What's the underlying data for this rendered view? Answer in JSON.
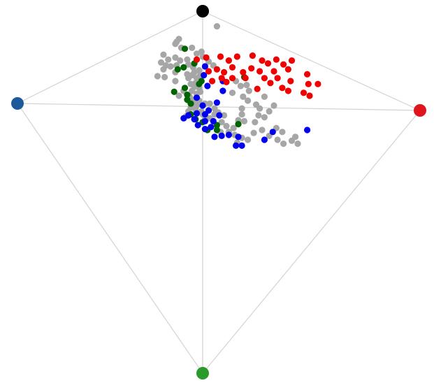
{
  "chart_data": {
    "type": "scatter",
    "description_free": true,
    "axes_shown": false,
    "grid": false,
    "anchors": [
      {
        "id": "top",
        "color": "#000000"
      },
      {
        "id": "left",
        "color": "#1c5a9c"
      },
      {
        "id": "right",
        "color": "#e0141c"
      },
      {
        "id": "bottom",
        "color": "#2a9a2a"
      }
    ],
    "edges": [
      [
        "top",
        "left"
      ],
      [
        "top",
        "right"
      ],
      [
        "left",
        "bottom"
      ],
      [
        "right",
        "bottom"
      ],
      [
        "top",
        "bottom"
      ],
      [
        "left",
        "right"
      ]
    ],
    "colors": {
      "gray": "#a6a6a6",
      "red": "#f00000",
      "blue": "#0000ee",
      "green": "#006400",
      "edge": "#d3d3d3"
    },
    "series": [
      {
        "color_key": "red",
        "points": [
          [
            -0.05,
            -0.52
          ],
          [
            0.03,
            -0.54
          ],
          [
            0.15,
            -0.55
          ],
          [
            0.22,
            -0.51
          ],
          [
            0.29,
            -0.55
          ],
          [
            0.42,
            -0.56
          ],
          [
            0.5,
            -0.51
          ],
          [
            0.05,
            -0.4
          ],
          [
            0.12,
            -0.42
          ],
          [
            0.18,
            -0.39
          ],
          [
            0.25,
            -0.44
          ],
          [
            0.34,
            -0.39
          ],
          [
            0.41,
            -0.43
          ],
          [
            0.48,
            -0.4
          ],
          [
            0.55,
            -0.48
          ],
          [
            0.62,
            -0.52
          ],
          [
            0.68,
            -0.47
          ],
          [
            0.75,
            -0.51
          ],
          [
            0.72,
            -0.42
          ],
          [
            0.6,
            -0.4
          ],
          [
            0.88,
            -0.37
          ],
          [
            0.63,
            -0.33
          ],
          [
            0.74,
            -0.3
          ],
          [
            0.89,
            -0.27
          ],
          [
            0.97,
            -0.27
          ],
          [
            0.16,
            -0.33
          ],
          [
            0.25,
            -0.33
          ],
          [
            0.36,
            -0.33
          ],
          [
            0.52,
            -0.33
          ],
          [
            0.08,
            -0.3
          ],
          [
            0.57,
            -0.28
          ],
          [
            0.67,
            -0.23
          ],
          [
            0.72,
            -0.2
          ],
          [
            0.85,
            -0.18
          ],
          [
            0.9,
            -0.15
          ],
          [
            0.46,
            -0.22
          ],
          [
            0.2,
            -0.29
          ]
        ]
      },
      {
        "color_key": "blue",
        "points": [
          [
            0.02,
            -0.45
          ],
          [
            0.01,
            -0.36
          ],
          [
            0.17,
            -0.3
          ],
          [
            0.17,
            -0.2
          ],
          [
            0.04,
            -0.25
          ],
          [
            -0.05,
            -0.13
          ],
          [
            0.0,
            -0.05
          ],
          [
            0.12,
            -0.08
          ],
          [
            0.05,
            0.0
          ],
          [
            0.02,
            0.04
          ],
          [
            -0.05,
            0.03
          ],
          [
            -0.12,
            0.05
          ],
          [
            -0.07,
            0.09
          ],
          [
            0.09,
            0.11
          ],
          [
            0.14,
            0.05
          ],
          [
            0.07,
            0.17
          ],
          [
            0.02,
            0.19
          ],
          [
            -0.04,
            0.15
          ],
          [
            0.1,
            0.27
          ],
          [
            0.16,
            0.26
          ],
          [
            0.3,
            0.27
          ],
          [
            0.22,
            0.25
          ],
          [
            0.28,
            0.36
          ],
          [
            0.33,
            0.36
          ],
          [
            0.52,
            0.3
          ],
          [
            0.59,
            0.22
          ],
          [
            0.88,
            0.2
          ],
          [
            -0.16,
            0.08
          ],
          [
            0.02,
            0.11
          ]
        ]
      },
      {
        "color_key": "green",
        "points": [
          [
            -0.15,
            -0.63
          ],
          [
            -0.07,
            -0.48
          ],
          [
            -0.16,
            -0.44
          ],
          [
            -0.21,
            -0.42
          ],
          [
            -0.01,
            -0.3
          ],
          [
            -0.03,
            -0.27
          ],
          [
            -0.15,
            -0.23
          ],
          [
            -0.24,
            -0.19
          ],
          [
            -0.13,
            -0.16
          ],
          [
            -0.13,
            -0.11
          ],
          [
            -0.1,
            -0.07
          ],
          [
            -0.1,
            0.04
          ],
          [
            -0.06,
            0.09
          ],
          [
            0.0,
            0.12
          ],
          [
            0.12,
            0.15
          ],
          [
            0.12,
            0.2
          ],
          [
            0.3,
            0.14
          ],
          [
            0.35,
            -0.34
          ],
          [
            0.04,
            0.2
          ]
        ]
      },
      {
        "color_key": "gray",
        "points": [
          [
            0.12,
            -0.86
          ],
          [
            -0.22,
            -0.7
          ],
          [
            -0.2,
            -0.73
          ],
          [
            -0.23,
            -0.68
          ],
          [
            -0.18,
            -0.64
          ],
          [
            -0.09,
            -0.64
          ],
          [
            -0.01,
            -0.6
          ],
          [
            -0.05,
            -0.58
          ],
          [
            0.0,
            -0.55
          ],
          [
            -0.33,
            -0.57
          ],
          [
            -0.29,
            -0.52
          ],
          [
            -0.23,
            -0.54
          ],
          [
            -0.19,
            -0.51
          ],
          [
            -0.13,
            -0.52
          ],
          [
            -0.35,
            -0.49
          ],
          [
            -0.31,
            -0.46
          ],
          [
            -0.27,
            -0.45
          ],
          [
            -0.22,
            -0.46
          ],
          [
            -0.12,
            -0.47
          ],
          [
            -0.08,
            -0.44
          ],
          [
            -0.33,
            -0.42
          ],
          [
            -0.23,
            -0.39
          ],
          [
            -0.13,
            -0.37
          ],
          [
            -0.07,
            -0.39
          ],
          [
            -0.03,
            -0.41
          ],
          [
            -0.38,
            -0.35
          ],
          [
            -0.32,
            -0.34
          ],
          [
            -0.23,
            -0.3
          ],
          [
            -0.12,
            -0.33
          ],
          [
            -0.05,
            -0.33
          ],
          [
            -0.02,
            -0.36
          ],
          [
            -0.09,
            -0.36
          ],
          [
            -0.06,
            -0.28
          ],
          [
            -0.1,
            -0.27
          ],
          [
            -0.07,
            -0.24
          ],
          [
            -0.03,
            -0.23
          ],
          [
            -0.09,
            -0.2
          ],
          [
            -0.05,
            -0.17
          ],
          [
            -0.16,
            -0.2
          ],
          [
            -0.2,
            -0.15
          ],
          [
            -0.11,
            -0.14
          ],
          [
            -0.02,
            -0.19
          ],
          [
            -0.12,
            -0.1
          ],
          [
            -0.07,
            -0.11
          ],
          [
            -0.03,
            -0.1
          ],
          [
            -0.09,
            -0.06
          ],
          [
            -0.05,
            -0.05
          ],
          [
            -0.1,
            -0.03
          ],
          [
            0.02,
            -0.07
          ],
          [
            0.06,
            -0.07
          ],
          [
            -0.06,
            -0.01
          ],
          [
            0.0,
            0.04
          ],
          [
            -0.12,
            0.01
          ],
          [
            -0.14,
            0.06
          ],
          [
            0.1,
            0.04
          ],
          [
            0.06,
            0.08
          ],
          [
            0.02,
            0.07
          ],
          [
            -0.01,
            0.01
          ],
          [
            0.13,
            0.02
          ],
          [
            0.18,
            0.05
          ],
          [
            0.1,
            -0.02
          ],
          [
            0.16,
            0.12
          ],
          [
            0.2,
            0.16
          ],
          [
            0.26,
            0.18
          ],
          [
            0.22,
            0.22
          ],
          [
            0.15,
            0.22
          ],
          [
            0.27,
            0.25
          ],
          [
            0.33,
            0.28
          ],
          [
            0.25,
            -0.18
          ],
          [
            0.32,
            -0.25
          ],
          [
            0.37,
            -0.26
          ],
          [
            0.28,
            -0.3
          ],
          [
            0.39,
            -0.2
          ],
          [
            0.34,
            -0.14
          ],
          [
            0.38,
            -0.1
          ],
          [
            0.33,
            -0.02
          ],
          [
            0.33,
            0.04
          ],
          [
            0.35,
            0.11
          ],
          [
            0.3,
            0.1
          ],
          [
            0.45,
            -0.06
          ],
          [
            0.48,
            -0.02
          ],
          [
            0.47,
            0.05
          ],
          [
            0.44,
            0.12
          ],
          [
            0.52,
            0.07
          ],
          [
            0.56,
            0.01
          ],
          [
            0.6,
            -0.05
          ],
          [
            0.52,
            -0.14
          ],
          [
            0.62,
            0.18
          ],
          [
            0.67,
            0.22
          ],
          [
            0.56,
            0.26
          ],
          [
            0.63,
            0.3
          ],
          [
            0.68,
            0.34
          ],
          [
            0.75,
            0.31
          ],
          [
            0.8,
            0.34
          ],
          [
            0.78,
            0.27
          ],
          [
            0.5,
            0.2
          ],
          [
            0.43,
            0.23
          ],
          [
            0.38,
            0.3
          ],
          [
            0.29,
            0.33
          ],
          [
            0.05,
            -0.5
          ],
          [
            0.09,
            -0.46
          ]
        ]
      }
    ]
  }
}
